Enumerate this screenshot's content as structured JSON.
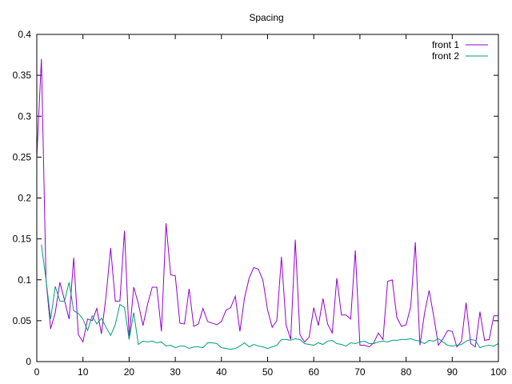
{
  "chart_data": {
    "type": "line",
    "title": "Spacing",
    "xlabel": "",
    "ylabel": "",
    "xlim": [
      0,
      100
    ],
    "ylim": [
      0,
      0.4
    ],
    "xticks": [
      0,
      10,
      20,
      30,
      40,
      50,
      60,
      70,
      80,
      90,
      100
    ],
    "yticks": [
      0,
      0.05,
      0.1,
      0.15,
      0.2,
      0.25,
      0.3,
      0.35,
      0.4
    ],
    "xtick_labels": [
      "0",
      "10",
      "20",
      "30",
      "40",
      "50",
      "60",
      "70",
      "80",
      "90",
      "100"
    ],
    "ytick_labels": [
      "0",
      "0.05",
      "0.1",
      "0.15",
      "0.2",
      "0.25",
      "0.3",
      "0.35",
      "0.4"
    ],
    "grid": false,
    "legend_position": "top-right",
    "series": [
      {
        "name": "front 1",
        "color": "#9400d3",
        "x": [
          0,
          1,
          2,
          3,
          4,
          5,
          6,
          7,
          8,
          9,
          10,
          11,
          12,
          13,
          14,
          15,
          16,
          17,
          18,
          19,
          20,
          21,
          22,
          23,
          24,
          25,
          26,
          27,
          28,
          29,
          30,
          31,
          32,
          33,
          34,
          35,
          36,
          37,
          38,
          39,
          40,
          41,
          42,
          43,
          44,
          45,
          46,
          47,
          48,
          49,
          50,
          51,
          52,
          53,
          54,
          55,
          56,
          57,
          58,
          59,
          60,
          61,
          62,
          63,
          64,
          65,
          66,
          67,
          68,
          69,
          70,
          71,
          72,
          73,
          74,
          75,
          76,
          77,
          78,
          79,
          80,
          81,
          82,
          83,
          84,
          85,
          86,
          87,
          88,
          89,
          90,
          91,
          92,
          93,
          94,
          95,
          96,
          97,
          98,
          99,
          100
        ],
        "values": [
          0.25,
          0.37,
          0.1,
          0.04,
          0.06,
          0.097,
          0.075,
          0.052,
          0.127,
          0.033,
          0.024,
          0.052,
          0.05,
          0.065,
          0.034,
          0.08,
          0.139,
          0.074,
          0.074,
          0.16,
          0.03,
          0.091,
          0.071,
          0.044,
          0.07,
          0.091,
          0.091,
          0.037,
          0.169,
          0.106,
          0.105,
          0.047,
          0.046,
          0.089,
          0.043,
          0.046,
          0.065,
          0.049,
          0.047,
          0.045,
          0.049,
          0.063,
          0.066,
          0.08,
          0.037,
          0.078,
          0.102,
          0.115,
          0.113,
          0.099,
          0.063,
          0.042,
          0.05,
          0.128,
          0.045,
          0.027,
          0.149,
          0.033,
          0.024,
          0.03,
          0.066,
          0.044,
          0.077,
          0.046,
          0.035,
          0.102,
          0.057,
          0.057,
          0.052,
          0.136,
          0.02,
          0.02,
          0.018,
          0.023,
          0.035,
          0.027,
          0.098,
          0.1,
          0.054,
          0.043,
          0.045,
          0.067,
          0.146,
          0.02,
          0.059,
          0.087,
          0.055,
          0.02,
          0.028,
          0.038,
          0.037,
          0.018,
          0.025,
          0.072,
          0.022,
          0.018,
          0.061,
          0.026,
          0.027,
          0.056,
          0.056
        ]
      },
      {
        "name": "front 2",
        "color": "#009e73",
        "x": [
          1,
          2,
          3,
          4,
          5,
          6,
          7,
          8,
          9,
          10,
          11,
          12,
          13,
          14,
          15,
          16,
          17,
          18,
          19,
          20,
          21,
          22,
          23,
          24,
          25,
          26,
          27,
          28,
          29,
          30,
          31,
          32,
          33,
          34,
          35,
          36,
          37,
          38,
          39,
          40,
          41,
          42,
          43,
          44,
          45,
          46,
          47,
          48,
          49,
          50,
          51,
          52,
          53,
          54,
          55,
          56,
          57,
          58,
          59,
          60,
          61,
          62,
          63,
          64,
          65,
          66,
          67,
          68,
          69,
          70,
          71,
          72,
          73,
          74,
          75,
          76,
          77,
          78,
          79,
          80,
          81,
          82,
          83,
          84,
          85,
          86,
          87,
          88,
          89,
          90,
          91,
          92,
          93,
          94,
          95,
          96,
          97,
          98,
          99,
          100
        ],
        "values": [
          0.143,
          0.1,
          0.052,
          0.092,
          0.074,
          0.074,
          0.097,
          0.062,
          0.059,
          0.052,
          0.038,
          0.056,
          0.046,
          0.053,
          0.042,
          0.032,
          0.045,
          0.07,
          0.066,
          0.027,
          0.06,
          0.021,
          0.025,
          0.024,
          0.025,
          0.023,
          0.024,
          0.019,
          0.02,
          0.017,
          0.019,
          0.019,
          0.016,
          0.018,
          0.018,
          0.017,
          0.023,
          0.023,
          0.022,
          0.017,
          0.016,
          0.015,
          0.016,
          0.019,
          0.023,
          0.018,
          0.021,
          0.019,
          0.018,
          0.016,
          0.018,
          0.02,
          0.027,
          0.027,
          0.026,
          0.028,
          0.027,
          0.022,
          0.021,
          0.02,
          0.023,
          0.021,
          0.025,
          0.026,
          0.022,
          0.021,
          0.019,
          0.023,
          0.022,
          0.024,
          0.025,
          0.022,
          0.022,
          0.024,
          0.025,
          0.024,
          0.026,
          0.026,
          0.027,
          0.027,
          0.028,
          0.026,
          0.025,
          0.022,
          0.026,
          0.025,
          0.028,
          0.024,
          0.02,
          0.019,
          0.02,
          0.021,
          0.025,
          0.027,
          0.026,
          0.017,
          0.019,
          0.02,
          0.019,
          0.022
        ]
      }
    ]
  }
}
